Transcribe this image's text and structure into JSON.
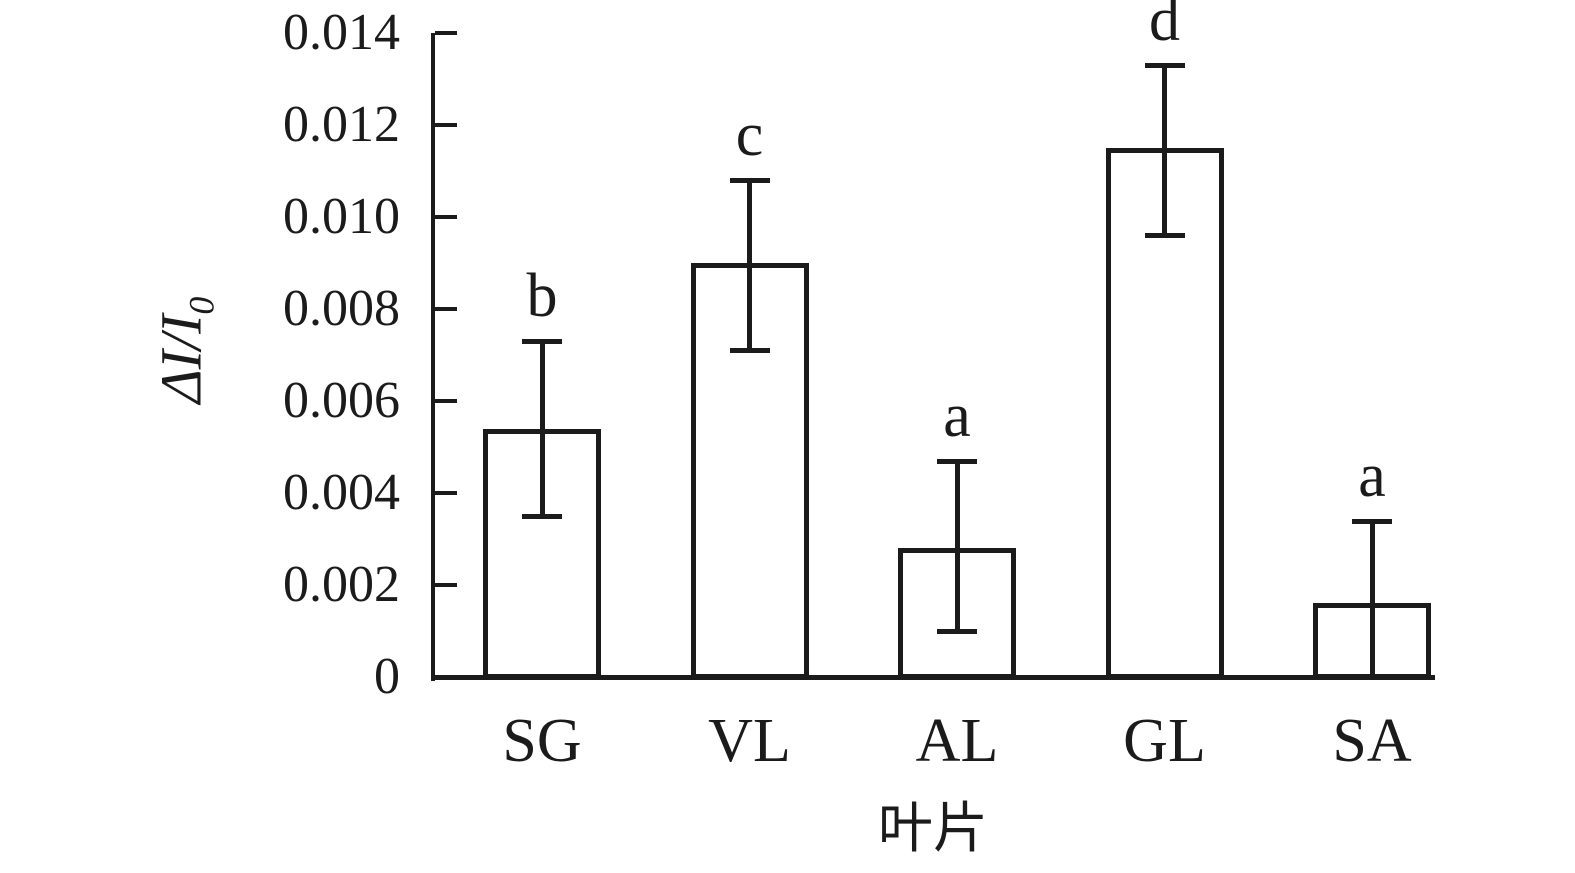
{
  "chart_data": {
    "type": "bar",
    "title": "",
    "xlabel": "叶片",
    "ylabel": "ΔI/I0",
    "ylabel_parts": {
      "delta": "Δ",
      "numerator": "I",
      "slash": "/",
      "denominator": "I",
      "subscript": "0"
    },
    "categories": [
      "SG",
      "VL",
      "AL",
      "GL",
      "SA"
    ],
    "values": [
      0.0054,
      0.009,
      0.0028,
      0.0115,
      0.0016
    ],
    "error_upper_abs": [
      0.0073,
      0.0108,
      0.0047,
      0.0133,
      0.0034
    ],
    "error_lower_abs": [
      0.0035,
      0.0071,
      0.001,
      0.0096,
      0.0
    ],
    "lower_cap_visible": [
      true,
      true,
      true,
      true,
      false
    ],
    "sig_letters": [
      "b",
      "c",
      "a",
      "d",
      "a"
    ],
    "ylim": [
      0,
      0.014
    ],
    "ytick_step": 0.002,
    "ytick_labels": [
      "0",
      "0.002",
      "0.004",
      "0.006",
      "0.008",
      "0.010",
      "0.012",
      "0.014"
    ],
    "grid": false,
    "legend": "none",
    "bar_fill": "#ffffff",
    "line_color": "#1b1b1b"
  }
}
